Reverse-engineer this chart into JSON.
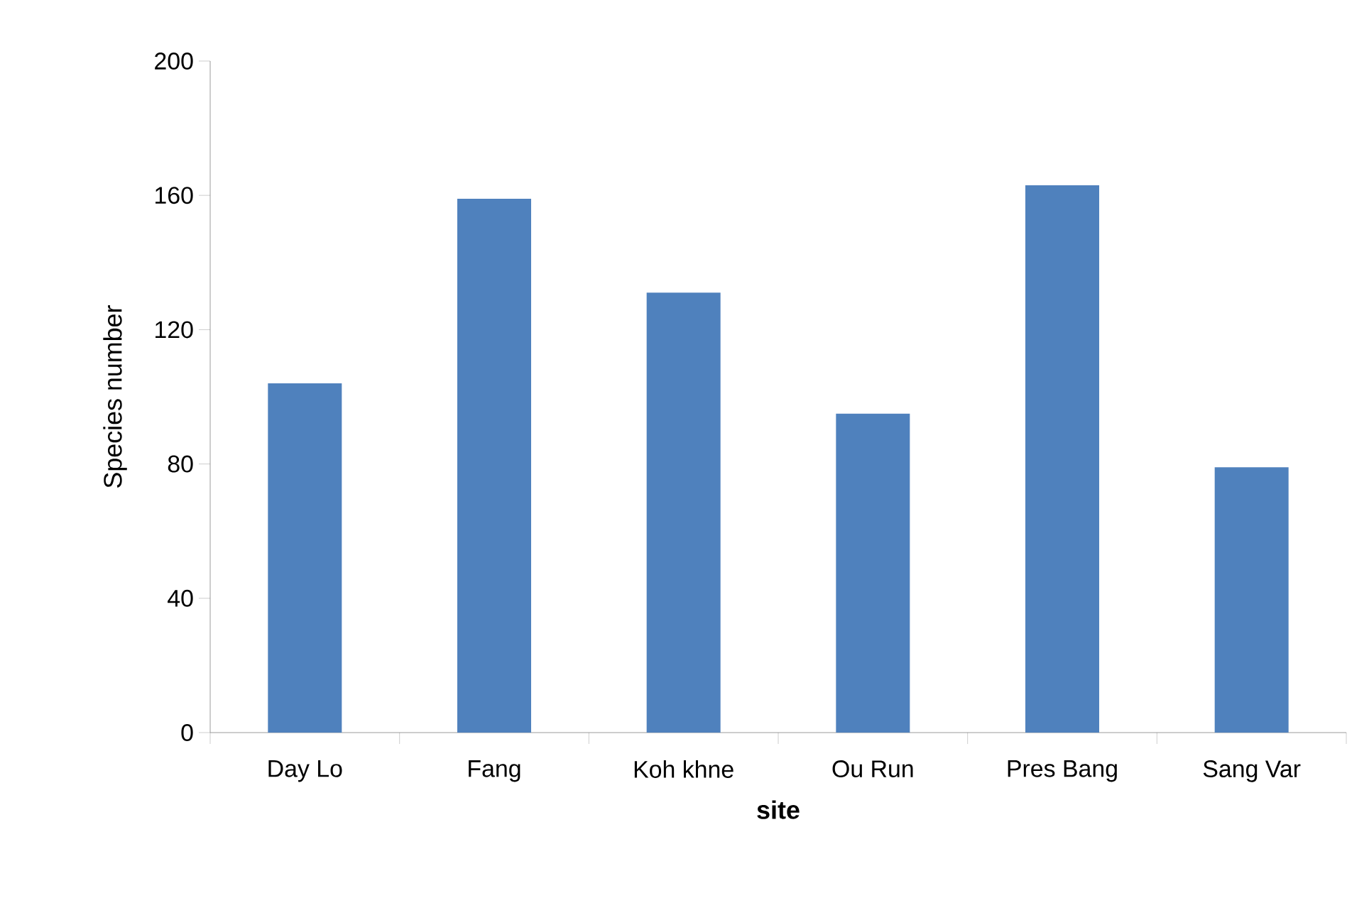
{
  "chart_data": {
    "type": "bar",
    "xlabel": "site",
    "ylabel": "Species number",
    "categories": [
      "Day Lo",
      "Fang",
      "Koh khne",
      "Ou Run",
      "Pres Bang",
      "Sang Var"
    ],
    "values": [
      104,
      159,
      131,
      95,
      163,
      79
    ],
    "color": "#4f81bd",
    "ylim": [
      0,
      200
    ],
    "yticks": [
      0,
      40,
      80,
      120,
      160,
      200
    ]
  }
}
